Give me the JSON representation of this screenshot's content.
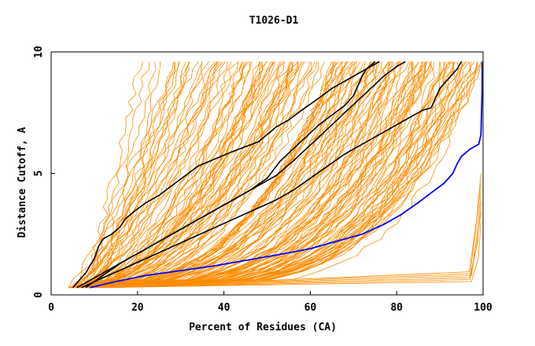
{
  "chart_data": {
    "type": "line",
    "title": "T1026-D1",
    "xlabel": "Percent of Residues (CA)",
    "ylabel": "Distance Cutoff, A",
    "xlim": [
      0,
      100
    ],
    "ylim": [
      0,
      10
    ],
    "xticks": [
      0,
      20,
      40,
      60,
      80,
      100
    ],
    "yticks": [
      0,
      5,
      10
    ],
    "xtick_labels": [
      "0",
      "20",
      "40",
      "60",
      "80",
      "100"
    ],
    "ytick_labels": [
      "0",
      "5",
      "10"
    ],
    "grid": false,
    "legend": "none",
    "colors": {
      "background_models": "#ff8c00",
      "highlighted_models": "#000000",
      "best_model": "#0000ff"
    },
    "background_model_count": 160,
    "highlighted_series": [
      {
        "color": "#000000",
        "x": [
          5,
          8,
          10,
          11,
          12,
          14,
          16,
          17,
          19,
          22,
          25,
          28,
          31,
          34,
          38,
          42,
          45,
          48,
          50,
          52,
          55,
          58,
          62,
          65,
          68,
          70,
          72,
          74,
          76
        ],
        "y": [
          0.3,
          0.9,
          1.5,
          2.0,
          2.3,
          2.5,
          2.8,
          3.1,
          3.4,
          3.8,
          4.1,
          4.5,
          4.9,
          5.3,
          5.6,
          5.9,
          6.1,
          6.3,
          6.6,
          6.9,
          7.2,
          7.6,
          8.1,
          8.5,
          8.8,
          9.0,
          9.2,
          9.4,
          9.6
        ]
      },
      {
        "color": "#000000",
        "x": [
          6,
          10,
          14,
          18,
          22,
          26,
          30,
          34,
          38,
          42,
          46,
          50,
          53,
          56,
          59,
          62,
          65,
          68,
          70,
          71,
          72,
          73,
          75
        ],
        "y": [
          0.3,
          0.7,
          1.1,
          1.5,
          1.9,
          2.3,
          2.7,
          3.1,
          3.5,
          3.9,
          4.3,
          4.8,
          5.5,
          6.0,
          6.5,
          7.0,
          7.4,
          7.8,
          8.2,
          8.6,
          9.0,
          9.3,
          9.6
        ]
      },
      {
        "color": "#000000",
        "x": [
          7,
          12,
          17,
          22,
          27,
          32,
          37,
          42,
          47,
          52,
          56,
          60,
          64,
          68,
          72,
          76,
          80,
          84,
          86,
          88,
          89,
          90,
          92,
          94,
          95
        ],
        "y": [
          0.3,
          0.7,
          1.1,
          1.5,
          1.9,
          2.3,
          2.7,
          3.1,
          3.5,
          3.9,
          4.3,
          4.8,
          5.3,
          5.8,
          6.2,
          6.6,
          7.0,
          7.4,
          7.6,
          7.7,
          8.1,
          8.5,
          8.9,
          9.3,
          9.6
        ]
      },
      {
        "color": "#000000",
        "x": [
          8,
          12,
          16,
          20,
          24,
          28,
          32,
          36,
          40,
          44,
          48,
          52,
          56,
          59,
          62,
          65,
          68,
          71,
          74,
          77,
          80,
          82
        ],
        "y": [
          0.3,
          0.8,
          1.3,
          1.7,
          2.1,
          2.5,
          2.9,
          3.3,
          3.7,
          4.1,
          4.5,
          4.9,
          5.5,
          6.0,
          6.5,
          7.0,
          7.5,
          8.0,
          8.5,
          9.0,
          9.4,
          9.6
        ]
      }
    ],
    "best_series": {
      "color": "#0000ff",
      "x": [
        9,
        15,
        22,
        30,
        38,
        46,
        54,
        60,
        66,
        72,
        77,
        81,
        85,
        88,
        91,
        93,
        94,
        95,
        97,
        99,
        99.5,
        99.6,
        99.8,
        99.8
      ],
      "y": [
        0.3,
        0.55,
        0.8,
        1.0,
        1.2,
        1.45,
        1.7,
        1.9,
        2.2,
        2.5,
        2.9,
        3.3,
        3.8,
        4.2,
        4.6,
        5.0,
        5.4,
        5.7,
        6.0,
        6.2,
        6.6,
        7.2,
        8.5,
        9.6
      ]
    }
  }
}
